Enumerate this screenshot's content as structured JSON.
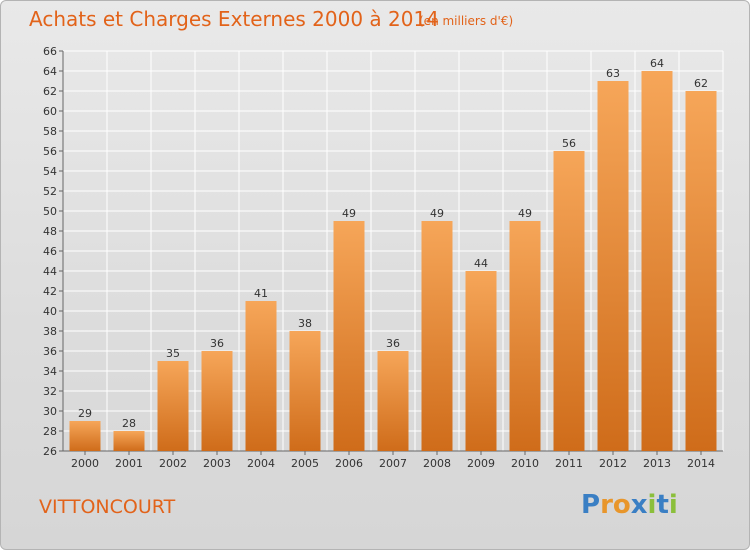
{
  "title": "Achats et Charges Externes 2000 à 2014",
  "subtitle": "(en milliers d'€)",
  "commune": "VITTONCOURT",
  "logo": {
    "letters": [
      "P",
      "r",
      "o",
      "x",
      "i",
      "t",
      "i"
    ],
    "colors": [
      "#3a7fc4",
      "#e8962b",
      "#e8962b",
      "#3a7fc4",
      "#8bbf3b",
      "#3a7fc4",
      "#8bbf3b"
    ]
  },
  "colors": {
    "title": "#e2631a",
    "bar_light": "#f6a659",
    "bar_dark": "#cf6c1a",
    "grid": "#ffffff"
  },
  "chart_data": {
    "type": "bar",
    "title": "Achats et Charges Externes 2000 à 2014",
    "subtitle": "(en milliers d'€)",
    "categories": [
      "2000",
      "2001",
      "2002",
      "2003",
      "2004",
      "2005",
      "2006",
      "2007",
      "2008",
      "2009",
      "2010",
      "2011",
      "2012",
      "2013",
      "2014"
    ],
    "values": [
      29,
      28,
      35,
      36,
      41,
      38,
      49,
      36,
      49,
      44,
      49,
      56,
      63,
      64,
      62
    ],
    "ylim": [
      26,
      66
    ],
    "ytick_step": 2,
    "grid": true,
    "xlabel": "",
    "ylabel": ""
  }
}
